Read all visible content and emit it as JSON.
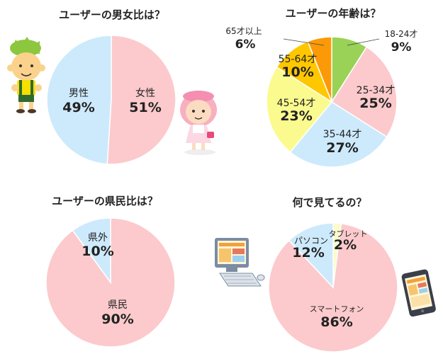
{
  "colors": {
    "pink": "#fccacc",
    "blue": "#cdeafc",
    "yellow_light": "#fbfa8f",
    "yellow": "#ffc700",
    "orange": "#fb9a06",
    "green": "#99d256",
    "cream": "#fcfbc9"
  },
  "chart_data": [
    {
      "id": "gender",
      "type": "pie",
      "title": "ユーザーの男女比は？",
      "slices": [
        {
          "name": "女性",
          "value": 51,
          "value_label": "51%",
          "color": "pink"
        },
        {
          "name": "男性",
          "value": 49,
          "value_label": "49%",
          "color": "blue"
        }
      ]
    },
    {
      "id": "age",
      "type": "pie",
      "title": "ユーザーの年齢は？",
      "slices": [
        {
          "name": "18-24才",
          "value": 9,
          "value_label": "9%",
          "color": "green"
        },
        {
          "name": "25-34才",
          "value": 25,
          "value_label": "25%",
          "color": "pink"
        },
        {
          "name": "35-44才",
          "value": 27,
          "value_label": "27%",
          "color": "blue"
        },
        {
          "name": "45-54才",
          "value": 23,
          "value_label": "23%",
          "color": "yellow_light"
        },
        {
          "name": "55-64才",
          "value": 10,
          "value_label": "10%",
          "color": "yellow"
        },
        {
          "name": "65才以上",
          "value": 6,
          "value_label": "6%",
          "color": "orange"
        }
      ]
    },
    {
      "id": "prefecture",
      "type": "pie",
      "title": "ユーザーの県民比は？",
      "slices": [
        {
          "name": "県民",
          "value": 90,
          "value_label": "90%",
          "color": "pink"
        },
        {
          "name": "県外",
          "value": 10,
          "value_label": "10%",
          "color": "blue"
        }
      ]
    },
    {
      "id": "device",
      "type": "pie",
      "title": "何で見てるの？",
      "slices": [
        {
          "name": "タブレット",
          "value": 2,
          "value_label": "2%",
          "color": "cream"
        },
        {
          "name": "スマートフォン",
          "value": 86,
          "value_label": "86%",
          "color": "pink"
        },
        {
          "name": "パソコン",
          "value": 12,
          "value_label": "12%",
          "color": "blue"
        }
      ]
    }
  ]
}
